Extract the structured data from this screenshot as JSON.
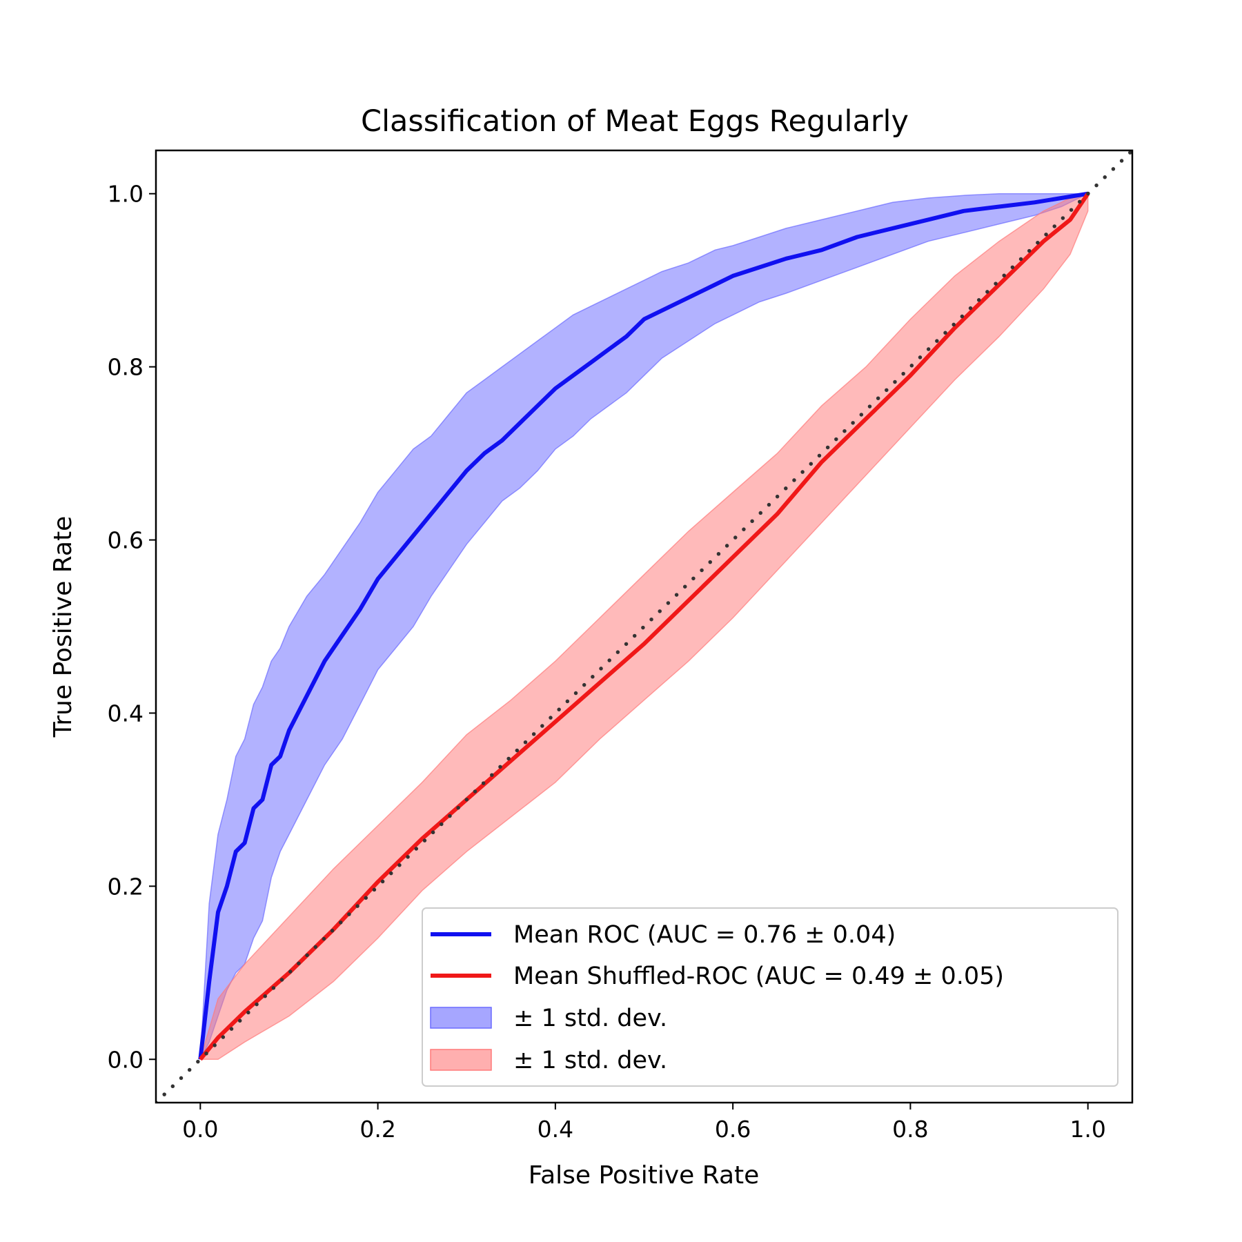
{
  "chart_data": {
    "type": "line",
    "title": "Classification of Meat Eggs Regularly",
    "xlabel": "False Positive Rate",
    "ylabel": "True Positive Rate",
    "xlim": [
      -0.05,
      1.05
    ],
    "ylim": [
      -0.05,
      1.05
    ],
    "xticks": [
      "0.0",
      "0.2",
      "0.4",
      "0.6",
      "0.8",
      "1.0"
    ],
    "yticks": [
      "0.0",
      "0.2",
      "0.4",
      "0.6",
      "0.8",
      "1.0"
    ],
    "grid": false,
    "legend_position": "lower-right",
    "series": [
      {
        "name": "Mean ROC (AUC = 0.76 ± 0.04)",
        "color": "#1010f0",
        "x": [
          0.0,
          0.01,
          0.02,
          0.03,
          0.04,
          0.05,
          0.06,
          0.07,
          0.08,
          0.09,
          0.1,
          0.12,
          0.14,
          0.16,
          0.18,
          0.2,
          0.22,
          0.24,
          0.26,
          0.28,
          0.3,
          0.32,
          0.34,
          0.36,
          0.38,
          0.4,
          0.42,
          0.44,
          0.46,
          0.48,
          0.5,
          0.52,
          0.55,
          0.58,
          0.6,
          0.63,
          0.66,
          0.7,
          0.74,
          0.78,
          0.82,
          0.86,
          0.9,
          0.94,
          0.97,
          1.0
        ],
        "y": [
          0.0,
          0.09,
          0.17,
          0.2,
          0.24,
          0.25,
          0.29,
          0.3,
          0.34,
          0.35,
          0.38,
          0.42,
          0.46,
          0.49,
          0.52,
          0.555,
          0.58,
          0.605,
          0.63,
          0.655,
          0.68,
          0.7,
          0.715,
          0.735,
          0.755,
          0.775,
          0.79,
          0.805,
          0.82,
          0.835,
          0.855,
          0.865,
          0.88,
          0.895,
          0.905,
          0.915,
          0.925,
          0.935,
          0.95,
          0.96,
          0.97,
          0.98,
          0.985,
          0.99,
          0.995,
          1.0
        ],
        "band_upper": [
          0.0,
          0.18,
          0.26,
          0.3,
          0.35,
          0.37,
          0.41,
          0.43,
          0.46,
          0.475,
          0.5,
          0.535,
          0.56,
          0.59,
          0.62,
          0.655,
          0.68,
          0.705,
          0.72,
          0.745,
          0.77,
          0.785,
          0.8,
          0.815,
          0.83,
          0.845,
          0.86,
          0.87,
          0.88,
          0.89,
          0.9,
          0.91,
          0.92,
          0.935,
          0.94,
          0.95,
          0.96,
          0.97,
          0.98,
          0.99,
          0.995,
          0.998,
          1.0,
          1.0,
          1.0,
          1.0
        ],
        "band_lower": [
          0.0,
          0.02,
          0.05,
          0.08,
          0.1,
          0.11,
          0.14,
          0.16,
          0.21,
          0.24,
          0.26,
          0.3,
          0.34,
          0.37,
          0.41,
          0.45,
          0.475,
          0.5,
          0.535,
          0.565,
          0.595,
          0.62,
          0.645,
          0.66,
          0.68,
          0.705,
          0.72,
          0.74,
          0.755,
          0.77,
          0.79,
          0.81,
          0.83,
          0.85,
          0.86,
          0.875,
          0.885,
          0.9,
          0.915,
          0.93,
          0.945,
          0.955,
          0.965,
          0.975,
          0.985,
          1.0
        ]
      },
      {
        "name": "Mean Shuffled-ROC (AUC = 0.49 ± 0.05)",
        "color": "#f01818",
        "x": [
          0.0,
          0.02,
          0.05,
          0.1,
          0.15,
          0.2,
          0.25,
          0.3,
          0.35,
          0.4,
          0.45,
          0.5,
          0.55,
          0.6,
          0.65,
          0.7,
          0.75,
          0.8,
          0.85,
          0.9,
          0.95,
          0.98,
          1.0
        ],
        "y": [
          0.0,
          0.025,
          0.055,
          0.1,
          0.15,
          0.205,
          0.255,
          0.3,
          0.345,
          0.39,
          0.435,
          0.48,
          0.53,
          0.58,
          0.63,
          0.69,
          0.74,
          0.79,
          0.845,
          0.895,
          0.945,
          0.97,
          1.0
        ],
        "band_upper": [
          0.0,
          0.07,
          0.11,
          0.165,
          0.22,
          0.27,
          0.32,
          0.375,
          0.415,
          0.46,
          0.51,
          0.56,
          0.61,
          0.655,
          0.7,
          0.755,
          0.8,
          0.855,
          0.905,
          0.945,
          0.98,
          0.995,
          1.0
        ],
        "band_lower": [
          0.0,
          0.0,
          0.02,
          0.05,
          0.09,
          0.14,
          0.195,
          0.24,
          0.28,
          0.32,
          0.37,
          0.415,
          0.46,
          0.51,
          0.565,
          0.62,
          0.675,
          0.73,
          0.785,
          0.835,
          0.89,
          0.93,
          0.98
        ]
      }
    ],
    "diagonal": {
      "x": [
        -0.05,
        1.05
      ],
      "y": [
        -0.05,
        1.05
      ],
      "color": "#333333"
    },
    "legend": [
      {
        "label": "Mean ROC (AUC = 0.76 ± 0.04)",
        "kind": "line",
        "color": "#1010f0"
      },
      {
        "label": "Mean Shuffled-ROC (AUC = 0.49 ± 0.05)",
        "kind": "line",
        "color": "#f01818"
      },
      {
        "label": "± 1 std. dev.",
        "kind": "patch",
        "color": "#6b6bff"
      },
      {
        "label": "± 1 std. dev.",
        "kind": "patch",
        "color": "#ff7a7a"
      }
    ]
  }
}
